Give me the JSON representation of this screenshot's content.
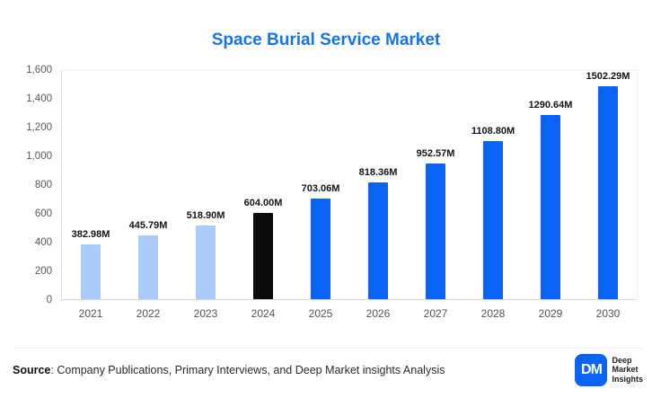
{
  "chart_data": {
    "type": "bar",
    "title": "Space Burial Service Market",
    "title_color": "#1a73e8",
    "categories": [
      "2021",
      "2022",
      "2023",
      "2024",
      "2025",
      "2026",
      "2027",
      "2028",
      "2029",
      "2030"
    ],
    "values": [
      382.98,
      445.79,
      518.9,
      604.0,
      703.06,
      818.36,
      952.57,
      1108.8,
      1290.64,
      1502.29
    ],
    "value_labels": [
      "382.98M",
      "445.79M",
      "518.90M",
      "604.00M",
      "703.06M",
      "818.36M",
      "952.57M",
      "1108.80M",
      "1290.64M",
      "1502.29M"
    ],
    "bar_colors": [
      "#a9ccfb",
      "#a9ccfb",
      "#a9ccfb",
      "#0b0b0b",
      "#0b63f6",
      "#0b63f6",
      "#0b63f6",
      "#0b63f6",
      "#0b63f6",
      "#0b63f6"
    ],
    "xlabel": "",
    "ylabel": "",
    "ylim": [
      0,
      1600
    ],
    "yticks": [
      "0",
      "200",
      "400",
      "600",
      "800",
      "1,000",
      "1,200",
      "1,400",
      "1,600"
    ],
    "grid": false,
    "legend": false
  },
  "footer": {
    "source_label": "Source",
    "source_text": ": Company Publications, Primary Interviews, and Deep Market insights Analysis",
    "logo": {
      "monogram": "DM",
      "color": "#0b63f6",
      "lines": [
        "Deep",
        "Market",
        "Insights"
      ]
    }
  }
}
